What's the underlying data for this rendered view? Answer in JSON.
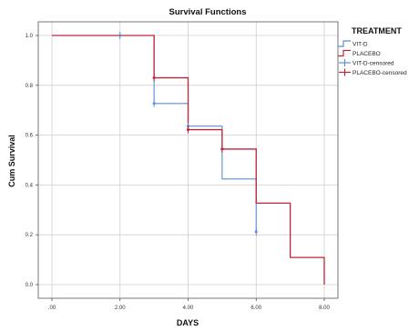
{
  "chart_data": {
    "type": "line",
    "title": "Survival Functions",
    "xlabel": "DAYS",
    "ylabel": "Cum Survival",
    "xlim": [
      0,
      8
    ],
    "ylim": [
      0,
      1
    ],
    "x_ticks": [
      ".00",
      "2.00",
      "4.00",
      "6.00",
      "8.00"
    ],
    "y_ticks": [
      "0.0",
      "0.2",
      "0.4",
      "0.6",
      "0.8",
      "1.0"
    ],
    "grid": true,
    "legend_position": "right",
    "legend": {
      "title": "TREATMENT",
      "entries": [
        "VIT-D",
        "PLACEBO",
        "VIT-D-censored",
        "PLACEBO-censored"
      ]
    },
    "series": [
      {
        "name": "VIT-D",
        "color": "#5b8fd4",
        "step_x": [
          0,
          3,
          4,
          5,
          6
        ],
        "step_y": [
          1.0,
          0.727,
          0.636,
          0.424,
          0.212
        ],
        "end_x": 6,
        "censored": [
          {
            "x": 2,
            "y": 1.0
          },
          {
            "x": 3,
            "y": 0.727
          },
          {
            "x": 4,
            "y": 0.636
          },
          {
            "x": 6,
            "y": 0.212
          }
        ]
      },
      {
        "name": "PLACEBO",
        "color": "#c0243a",
        "step_x": [
          0,
          3,
          4,
          5,
          6,
          7,
          8
        ],
        "step_y": [
          1.0,
          0.83,
          0.622,
          0.544,
          0.327,
          0.109,
          0.0
        ],
        "end_x": 8,
        "censored": [
          {
            "x": 3,
            "y": 0.83
          },
          {
            "x": 4,
            "y": 0.622
          },
          {
            "x": 5,
            "y": 0.544
          }
        ]
      }
    ]
  }
}
